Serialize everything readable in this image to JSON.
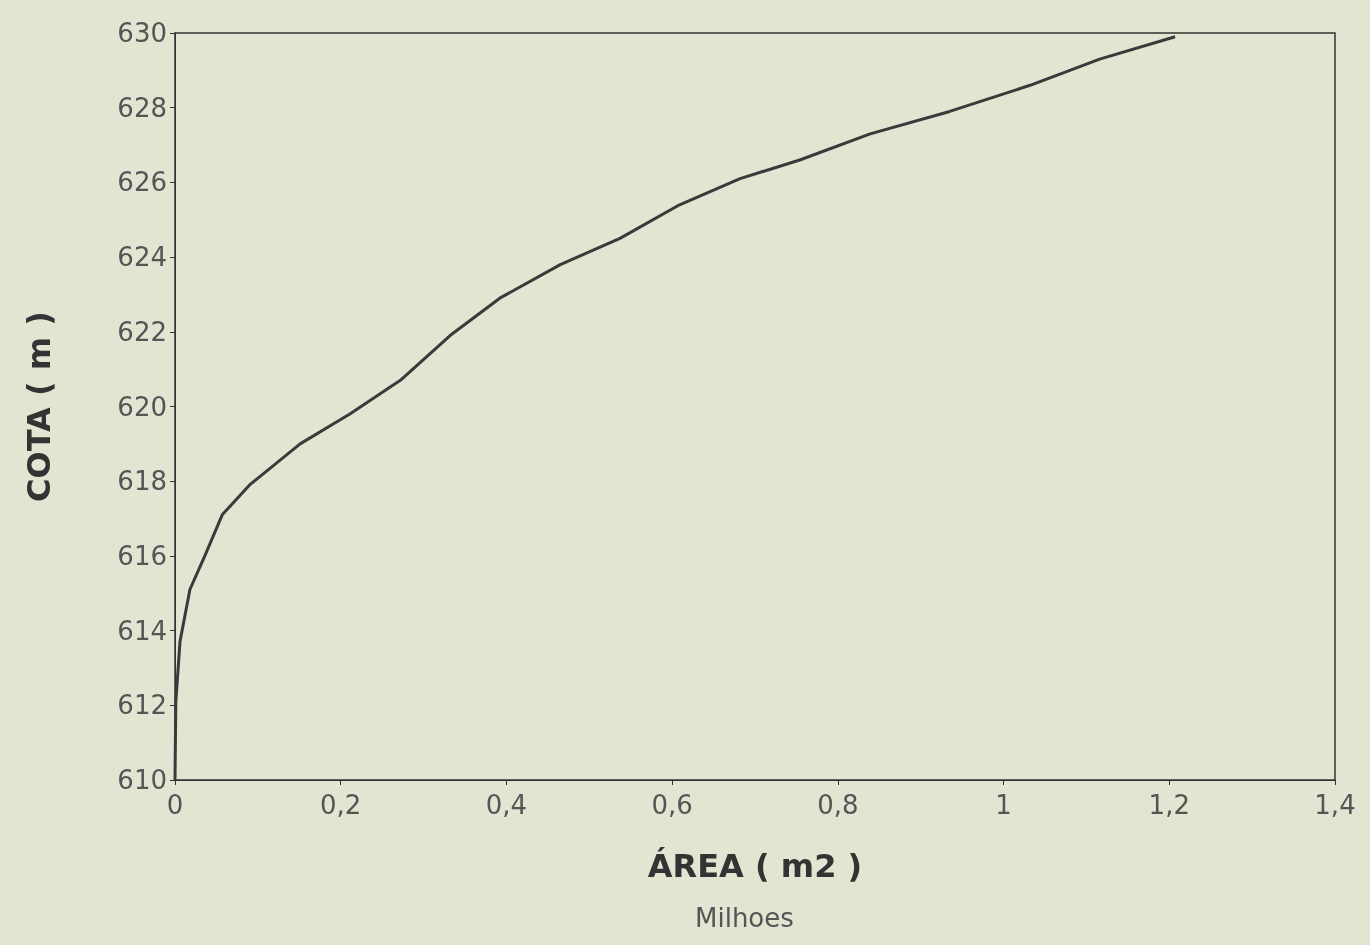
{
  "chart_data": {
    "type": "line",
    "xlabel": "ÁREA ( m2 )",
    "ylabel": "COTA ( m )",
    "annotations": [
      "Milhoes"
    ],
    "series": [
      {
        "color": "#3a3a3a",
        "x": [
          0,
          0.001,
          0.006,
          0.018,
          0.036,
          0.057,
          0.09,
          0.151,
          0.211,
          0.272,
          0.332,
          0.392,
          0.465,
          0.537,
          0.609,
          0.682,
          0.754,
          0.839,
          0.935,
          1.032,
          1.116,
          1.207
        ],
        "values": [
          610,
          612.1,
          613.7,
          615.1,
          616,
          617.1,
          617.9,
          619,
          619.8,
          620.7,
          621.9,
          622.9,
          623.8,
          624.5,
          625.4,
          626.1,
          626.6,
          627.3,
          627.9,
          628.6,
          629.3,
          629.9
        ]
      }
    ],
    "xlim": [
      0,
      1.4
    ],
    "ylim": [
      610,
      630
    ],
    "xticks": [
      0,
      {
        "value": 0.2,
        "label": "0,2"
      },
      {
        "value": 0.4,
        "label": "0,4"
      },
      {
        "value": 0.6,
        "label": "0,6"
      },
      {
        "value": 0.8,
        "label": "0,8"
      },
      1,
      {
        "value": 1.2,
        "label": "1,2"
      },
      {
        "value": 1.4,
        "label": "1,4"
      }
    ],
    "yticks": [
      610,
      612,
      614,
      616,
      618,
      620,
      622,
      624,
      626,
      628,
      630
    ],
    "grid": false,
    "marker": "none",
    "line_style": "solid"
  }
}
